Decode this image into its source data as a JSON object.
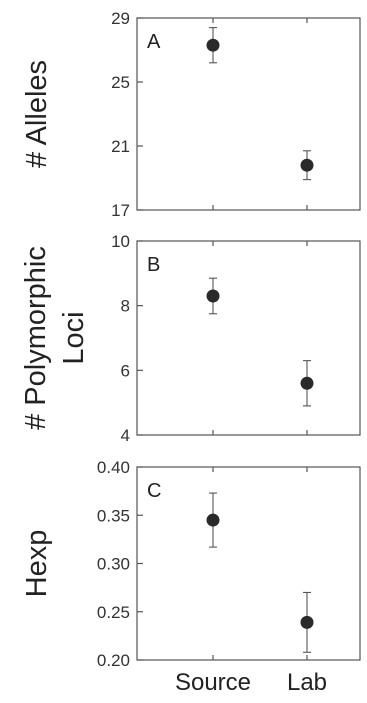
{
  "chart_data": [
    {
      "type": "scatter",
      "panel_label": "A",
      "ylabel": "# Alleles",
      "ylim": [
        17,
        29
      ],
      "yticks": [
        17,
        21,
        25,
        29
      ],
      "ytick_labels": [
        "17",
        "21",
        "25",
        "29"
      ],
      "categories": [
        "Source",
        "Lab"
      ],
      "values": [
        27.3,
        19.8
      ],
      "errors": [
        1.1,
        0.9
      ]
    },
    {
      "type": "scatter",
      "panel_label": "B",
      "ylabel": "# Polymorphic Loci",
      "ylabel_lines": [
        "# Polymorphic",
        "Loci"
      ],
      "ylim": [
        4,
        10
      ],
      "yticks": [
        4,
        6,
        8,
        10
      ],
      "ytick_labels": [
        "4",
        "6",
        "8",
        "10"
      ],
      "categories": [
        "Source",
        "Lab"
      ],
      "values": [
        8.3,
        5.6
      ],
      "errors": [
        0.55,
        0.7
      ]
    },
    {
      "type": "scatter",
      "panel_label": "C",
      "ylabel": "Hexp",
      "ylim": [
        0.2,
        0.4
      ],
      "yticks": [
        0.2,
        0.25,
        0.3,
        0.35,
        0.4
      ],
      "ytick_labels": [
        "0.20",
        "0.25",
        "0.30",
        "0.35",
        "0.40"
      ],
      "categories": [
        "Source",
        "Lab"
      ],
      "values": [
        0.345,
        0.239
      ],
      "errors": [
        0.028,
        0.031
      ]
    }
  ],
  "x_category_labels": [
    "Source",
    "Lab"
  ]
}
